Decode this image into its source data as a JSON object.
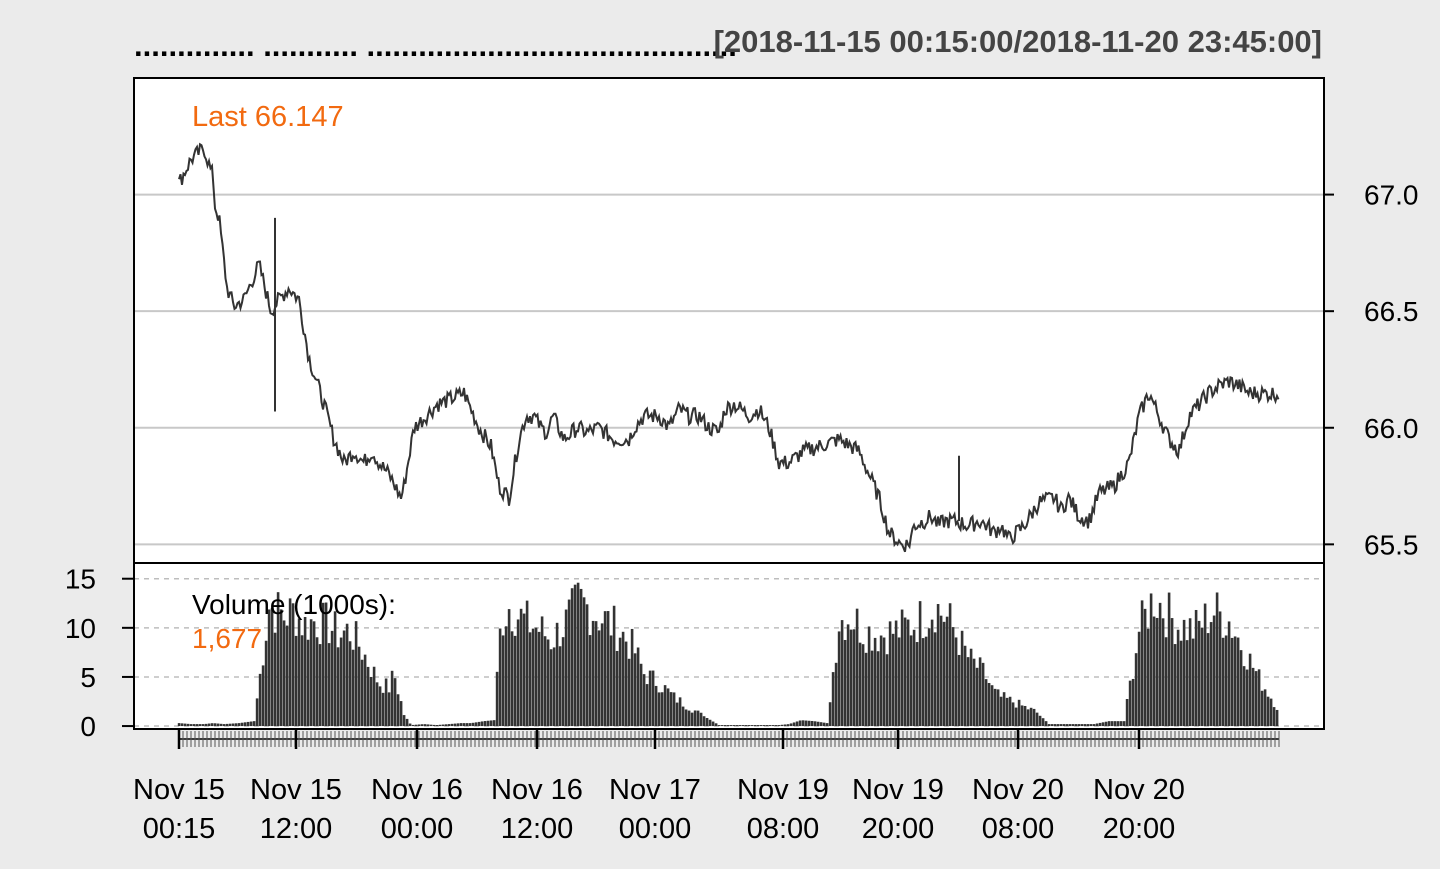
{
  "chart_data": {
    "type": "line",
    "title": ".............. ........... ...........................................",
    "date_range": "[2018-11-15 00:15:00/2018-11-20 23:45:00]",
    "last_label": "Last 66.147",
    "volume_label": "Volume (1000s):",
    "volume_last": "1,677",
    "y_ticks_price": [
      "67.0",
      "66.5",
      "66.0",
      "65.5"
    ],
    "y_tick_values_price": [
      67.0,
      66.5,
      66.0,
      65.5
    ],
    "ylim_price": [
      65.42,
      67.5
    ],
    "y_ticks_volume": [
      "15",
      "10",
      "5",
      "0"
    ],
    "y_tick_values_volume": [
      15,
      10,
      5,
      0
    ],
    "ylim_volume": [
      -0.3,
      16.6
    ],
    "x_tick_labels": [
      [
        "Nov 15",
        "00:15"
      ],
      [
        "Nov 15",
        "12:00"
      ],
      [
        "Nov 16",
        "00:00"
      ],
      [
        "Nov 16",
        "12:00"
      ],
      [
        "Nov 17",
        "00:00"
      ],
      [
        "Nov 19",
        "08:00"
      ],
      [
        "Nov 19",
        "20:00"
      ],
      [
        "Nov 20",
        "08:00"
      ],
      [
        "Nov 20",
        "20:00"
      ]
    ],
    "price_series": {
      "name": "",
      "x": [
        0,
        12,
        25,
        32,
        34,
        36,
        40,
        48,
        55,
        65,
        80,
        92,
        100,
        110,
        120,
        130,
        145,
        155,
        165,
        175,
        185,
        193,
        200,
        210,
        222,
        225,
        235,
        247,
        258,
        270,
        285,
        300,
        312,
        320,
        330,
        340,
        347,
        355,
        362,
        368,
        374,
        385,
        398,
        408,
        420,
        435,
        450,
        455,
        465,
        480,
        490,
        500,
        510,
        520,
        530,
        540,
        546,
        555,
        562,
        570,
        580,
        590,
        600,
        610,
        625,
        640,
        660,
        680,
        690,
        700,
        710,
        722,
        730,
        735,
        745,
        752,
        760,
        765,
        775,
        790,
        800,
        808,
        815,
        822,
        830,
        845,
        860,
        875,
        882,
        890,
        900,
        910,
        920,
        935,
        950,
        960,
        970,
        980,
        990,
        1000,
        1010,
        1020,
        1030,
        1040,
        1050,
        1060,
        1070,
        1085,
        1100
      ],
      "y": [
        67.05,
        67.15,
        67.2,
        67.1,
        67.08,
        66.95,
        66.9,
        66.6,
        66.52,
        66.55,
        66.7,
        66.5,
        66.55,
        66.6,
        66.55,
        66.3,
        66.1,
        65.95,
        65.85,
        65.9,
        65.85,
        65.9,
        65.85,
        65.8,
        65.7,
        65.75,
        66.0,
        66.05,
        66.1,
        66.12,
        66.15,
        66.0,
        65.92,
        65.75,
        65.7,
        65.95,
        66.05,
        66.05,
        66.0,
        65.98,
        66.05,
        65.95,
        66.0,
        65.98,
        66.0,
        65.95,
        65.95,
        66.0,
        66.05,
        66.05,
        66.0,
        66.08,
        66.05,
        66.05,
        66.0,
        65.98,
        66.08,
        66.1,
        66.08,
        66.05,
        66.08,
        66.0,
        65.85,
        65.85,
        65.9,
        65.92,
        65.95,
        65.9,
        65.8,
        65.7,
        65.55,
        65.5,
        65.5,
        65.58,
        65.6,
        65.62,
        65.58,
        65.6,
        65.6,
        65.58,
        65.6,
        65.58,
        65.55,
        65.58,
        65.52,
        65.58,
        65.68,
        65.7,
        65.65,
        65.7,
        65.62,
        65.6,
        65.72,
        65.75,
        65.85,
        66.05,
        66.15,
        66.05,
        65.95,
        65.9,
        66.05,
        66.1,
        66.15,
        66.18,
        66.2,
        66.18,
        66.15,
        66.147,
        66.147
      ]
    },
    "volume_series": {
      "name": "",
      "x": [
        0,
        12,
        25,
        34,
        45,
        60,
        75,
        90,
        105,
        115,
        125,
        135,
        150,
        160,
        170,
        180,
        190,
        200,
        210,
        215,
        225,
        232,
        245,
        257,
        270,
        282,
        292,
        305,
        315,
        322,
        330,
        345,
        362,
        372,
        385,
        400,
        420,
        440,
        455,
        465,
        480,
        495,
        510,
        525,
        540,
        555,
        565,
        580,
        590,
        600,
        610,
        622,
        635,
        648,
        660,
        672,
        685,
        700,
        720,
        740,
        756,
        770,
        790,
        805,
        815,
        822,
        835,
        845,
        857,
        870,
        885,
        900,
        915,
        930,
        945,
        960,
        975,
        990,
        1000,
        1015,
        1035,
        1050,
        1065,
        1080,
        1100
      ],
      "y": [
        0.3,
        0.2,
        0.2,
        0.3,
        0.2,
        0.3,
        0.5,
        12.5,
        11.5,
        12,
        10.5,
        11,
        10.5,
        9.5,
        10,
        8.5,
        6.5,
        4.5,
        4,
        5.5,
        1.2,
        0.1,
        0.2,
        0.1,
        0.2,
        0.3,
        0.3,
        0.5,
        0.6,
        11,
        12.5,
        11,
        10,
        9,
        10.5,
        13,
        11.5,
        10,
        8,
        5.5,
        4.5,
        3,
        2,
        1,
        0.1,
        0.1,
        0.1,
        0.1,
        0.1,
        0.1,
        0.2,
        0.6,
        0.5,
        0.3,
        11,
        11.5,
        10,
        9.5,
        10,
        11,
        12.5,
        11,
        7,
        5.5,
        3.5,
        3,
        2.5,
        2,
        1.5,
        0.2,
        0.2,
        0.2,
        0.2,
        0.5,
        0.5,
        10,
        13.5,
        11.5,
        10.5,
        10,
        12,
        11,
        8,
        5,
        1.7
      ]
    }
  }
}
